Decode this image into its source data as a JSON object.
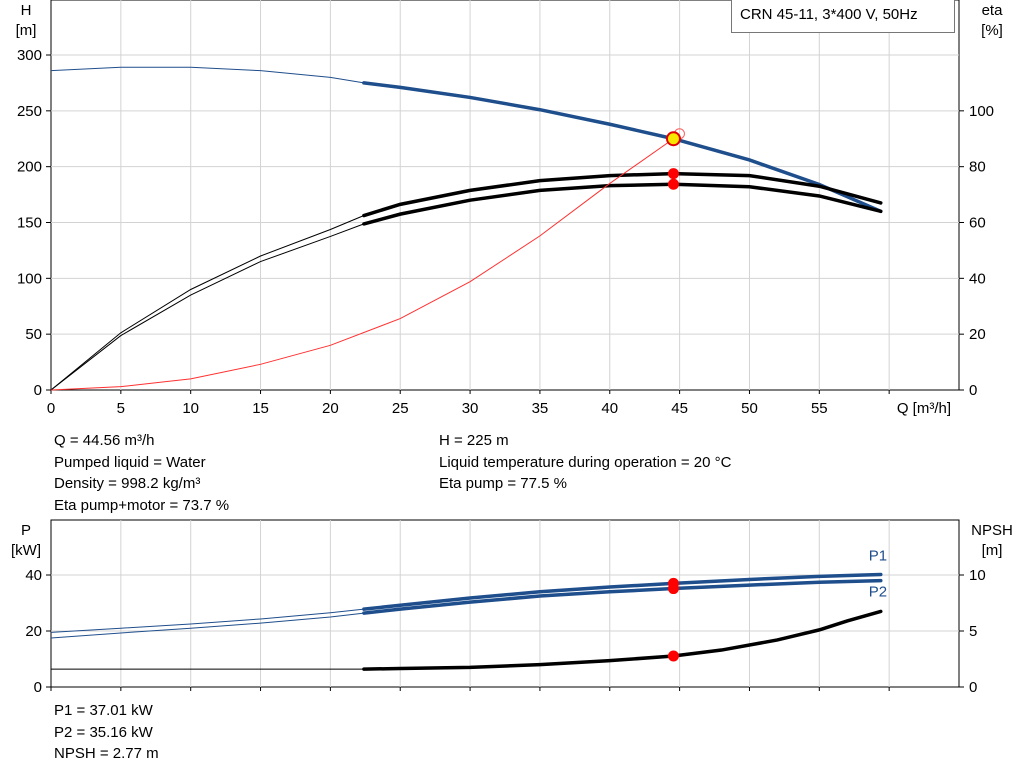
{
  "chart_data": [
    {
      "type": "line",
      "title": "CRN 45-11, 3*400 V, 50Hz",
      "xlabel": "Q [m³/h]",
      "ylabel_left": [
        "H",
        "[m]"
      ],
      "ylabel_right": [
        "eta",
        "[%]"
      ],
      "xlim": [
        0,
        65
      ],
      "ylim_left": [
        0,
        300
      ],
      "ylim_right": [
        0,
        120
      ],
      "x_ticks": [
        "0",
        "5",
        "10",
        "15",
        "20",
        "25",
        "30",
        "35",
        "40",
        "45",
        "50",
        "55"
      ],
      "y_ticks_left": [
        "0",
        "50",
        "100",
        "150",
        "200",
        "250",
        "300"
      ],
      "y_ticks_right": [
        "0",
        "20",
        "40",
        "60",
        "80",
        "100"
      ],
      "grid": true,
      "series": [
        {
          "color": "#1f4e8c",
          "axis": "left",
          "x": [
            0,
            5,
            10,
            15,
            20,
            22.4,
            25,
            30,
            35,
            40,
            44.56,
            50,
            55,
            59.4
          ],
          "y": [
            286,
            289,
            289,
            286,
            280,
            275,
            271,
            262,
            251,
            238,
            225,
            206,
            184,
            160
          ],
          "thick_from": 22.4
        },
        {
          "color": "#000000",
          "axis": "right",
          "x": [
            0,
            5,
            10,
            15,
            20,
            22.4,
            25,
            30,
            35,
            40,
            44.56,
            50,
            55,
            59.4
          ],
          "y": [
            0,
            20.5,
            36,
            48,
            57.5,
            62.5,
            66.5,
            71.5,
            75,
            76.8,
            77.5,
            76.8,
            73,
            67
          ],
          "thick_from": 22.4
        },
        {
          "color": "#000000",
          "axis": "right",
          "x": [
            0,
            5,
            10,
            15,
            20,
            22.4,
            25,
            30,
            35,
            40,
            44.56,
            50,
            55,
            59.4
          ],
          "y": [
            0,
            19.5,
            34,
            46,
            55,
            59.5,
            63,
            68,
            71.5,
            73.2,
            73.7,
            72.8,
            69.5,
            64
          ],
          "thick_from": 22.4
        },
        {
          "color": "#ff3030",
          "axis": "left",
          "x": [
            0,
            5,
            10,
            15,
            20,
            25,
            30,
            35,
            40,
            44.56
          ],
          "y": [
            0,
            3,
            10,
            23,
            40,
            64,
            97,
            138,
            185,
            225
          ],
          "thick_from": null
        }
      ],
      "points": [
        {
          "x": 44.56,
          "y": 225,
          "axis": "left",
          "color": "#f7e600"
        },
        {
          "x": 44.56,
          "y": 77.5,
          "axis": "right",
          "color": "#ff0000"
        },
        {
          "x": 44.56,
          "y": 73.7,
          "axis": "right",
          "color": "#ff0000"
        }
      ]
    },
    {
      "type": "line",
      "xlabel": "",
      "ylabel_left": [
        "P",
        "[kW]"
      ],
      "ylabel_right": [
        "NPSH",
        "[m]"
      ],
      "xlim": [
        0,
        65
      ],
      "ylim_left": [
        0,
        40
      ],
      "ylim_right": [
        0,
        10
      ],
      "y_ticks_left": [
        "0",
        "20",
        "40"
      ],
      "y_ticks_right": [
        "0",
        "5",
        "10"
      ],
      "grid": true,
      "series": [
        {
          "name": "P1",
          "color": "#1f4e8c",
          "axis": "left",
          "x": [
            0,
            5,
            10,
            15,
            20,
            22.4,
            25,
            30,
            35,
            40,
            44.56,
            50,
            55,
            59.4
          ],
          "y": [
            19.5,
            21,
            22.5,
            24.3,
            26.5,
            27.8,
            29.2,
            31.8,
            34,
            35.7,
            37.01,
            38.4,
            39.5,
            40.2
          ],
          "thick_from": 22.4
        },
        {
          "name": "P2",
          "color": "#1f4e8c",
          "axis": "left",
          "x": [
            0,
            5,
            10,
            15,
            20,
            22.4,
            25,
            30,
            35,
            40,
            44.56,
            50,
            55,
            59.4
          ],
          "y": [
            17.5,
            19.3,
            21,
            22.8,
            25,
            26.4,
            27.8,
            30.3,
            32.5,
            34,
            35.16,
            36.4,
            37.4,
            38
          ],
          "thick_from": 22.4
        },
        {
          "color": "#000000",
          "axis": "right",
          "x": [
            0,
            10,
            20,
            22.4,
            25,
            30,
            35,
            40,
            44.56,
            48,
            52,
            55,
            57,
            59.4
          ],
          "y": [
            1.6,
            1.6,
            1.6,
            1.6,
            1.65,
            1.75,
            2.0,
            2.35,
            2.77,
            3.3,
            4.2,
            5.1,
            5.9,
            6.75
          ],
          "thick_from": 22.4
        }
      ],
      "points": [
        {
          "x": 44.56,
          "y": 37.01,
          "axis": "left",
          "color": "#ff0000"
        },
        {
          "x": 44.56,
          "y": 35.16,
          "axis": "left",
          "color": "#ff0000"
        },
        {
          "x": 44.56,
          "y": 2.77,
          "axis": "right",
          "color": "#ff0000"
        }
      ]
    }
  ],
  "info_top_left": [
    "Q = 44.56 m³/h",
    "Pumped liquid = Water",
    "Density = 998.2 kg/m³",
    "Eta pump+motor = 73.7 %"
  ],
  "info_top_right": [
    "H = 225 m",
    "Liquid temperature during operation = 20 °C",
    "Eta pump = 77.5 %"
  ],
  "info_bottom": [
    "P1 = 37.01 kW",
    "P2 = 35.16 kW",
    "NPSH = 2.77 m"
  ]
}
